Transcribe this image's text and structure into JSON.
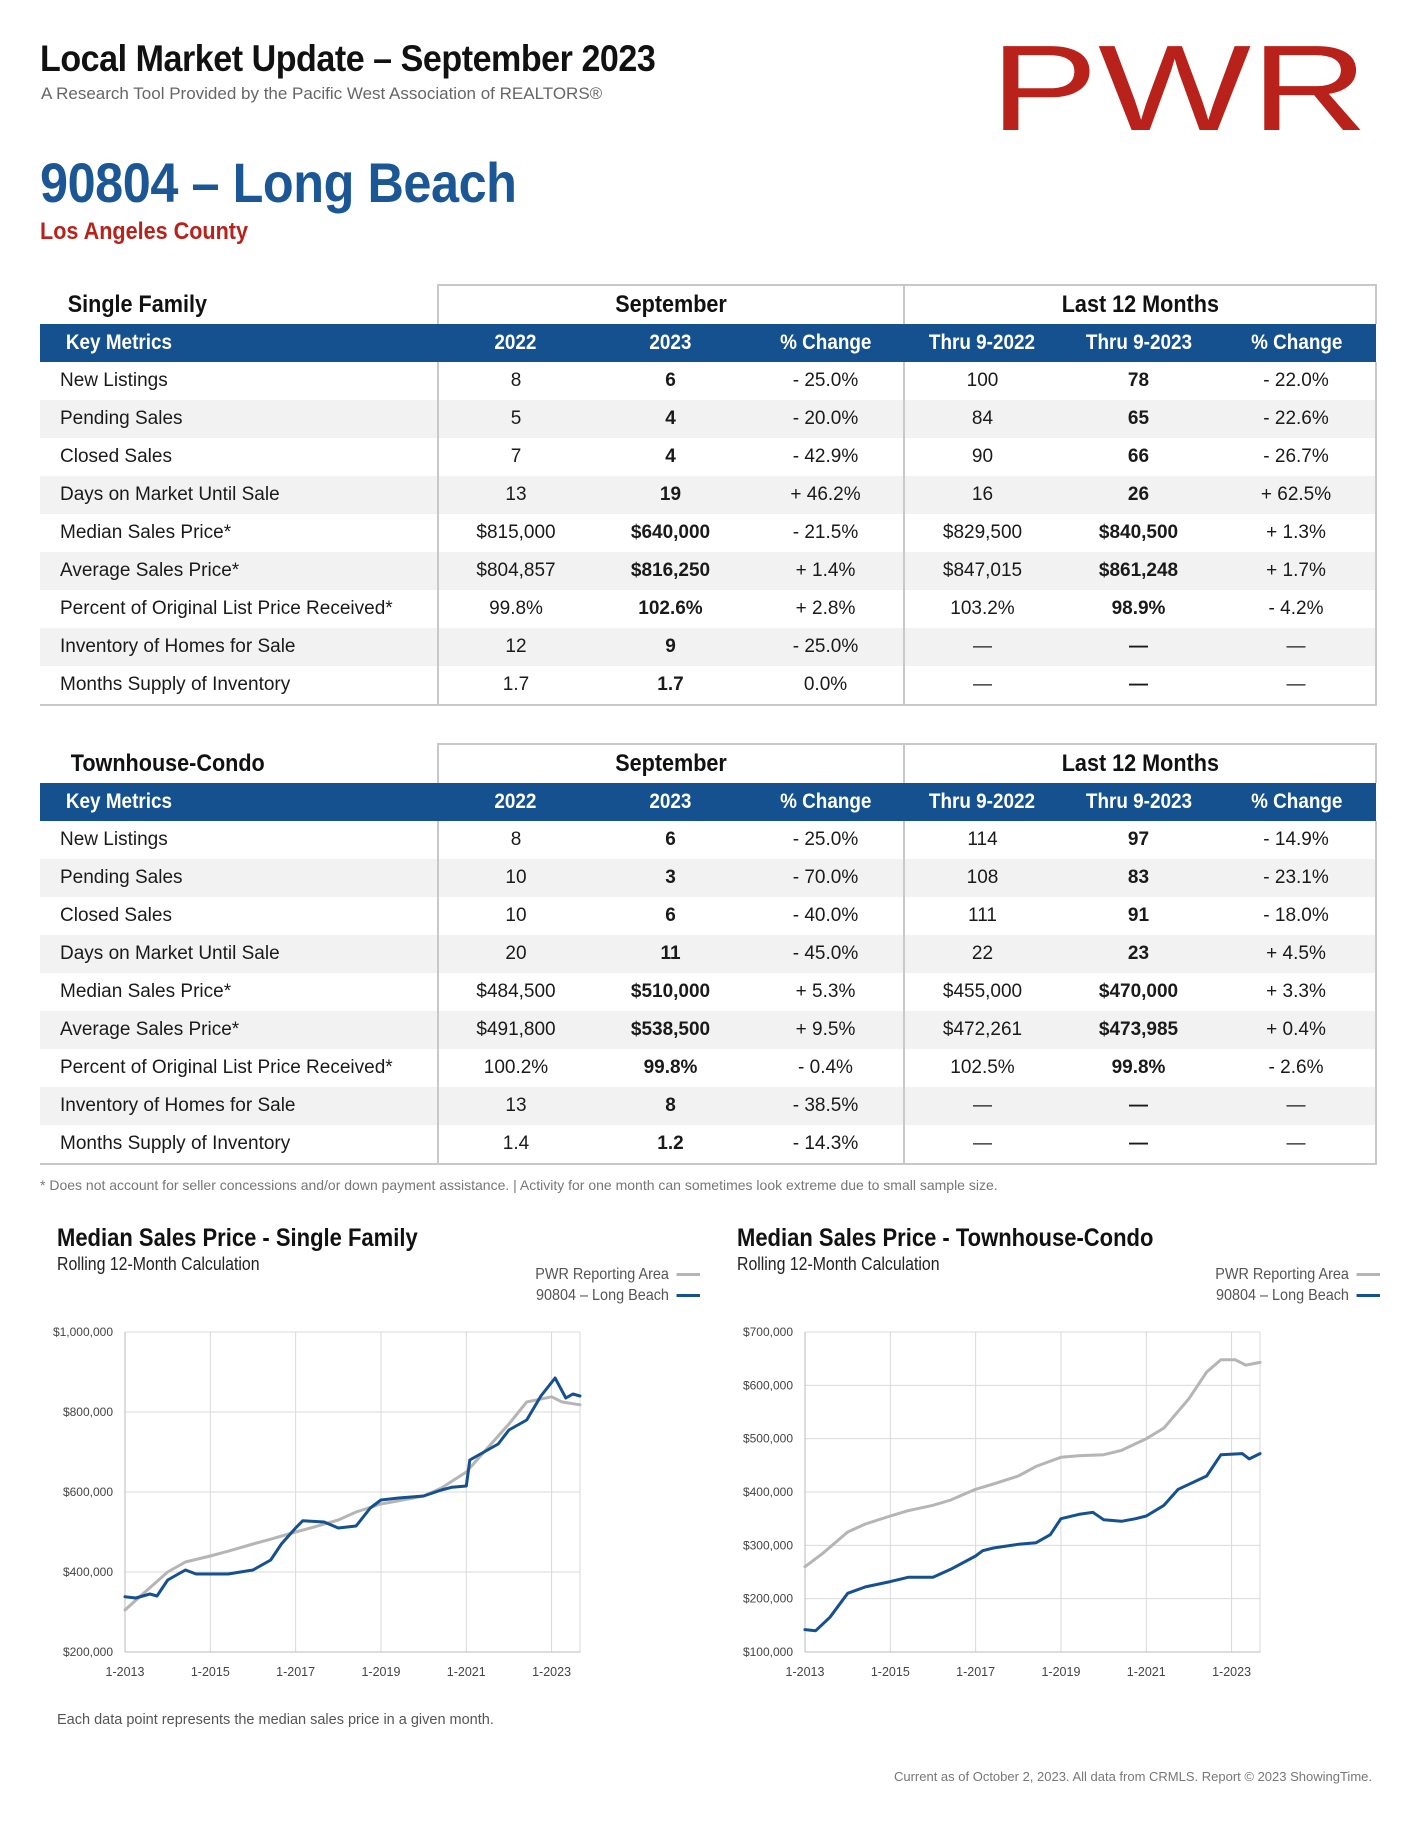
{
  "header": {
    "title": "Local Market Update – September 2023",
    "subtitle": "A Research Tool Provided by the Pacific West Association of REALTORS®",
    "logo_text": "PWR",
    "area": "90804 – Long Beach",
    "county": "Los Angeles County"
  },
  "colors": {
    "brand_blue": "#15508f",
    "title_blue": "#1b5794",
    "brand_red": "#b8221a",
    "region_gray": "#b5b5b5",
    "zip_blue": "#15508f"
  },
  "table_headers": {
    "september": "September",
    "last12": "Last 12 Months",
    "key_metrics": "Key Metrics",
    "y2022": "2022",
    "y2023": "2023",
    "pct_change": "% Change",
    "thru2022": "Thru 9-2022",
    "thru2023": "Thru 9-2023"
  },
  "tables": [
    {
      "name": "Single Family",
      "rows": [
        {
          "metric": "New Listings",
          "m2022": "8",
          "m2023": "6",
          "mchg": "- 25.0%",
          "t2022": "100",
          "t2023": "78",
          "tchg": "- 22.0%"
        },
        {
          "metric": "Pending Sales",
          "m2022": "5",
          "m2023": "4",
          "mchg": "- 20.0%",
          "t2022": "84",
          "t2023": "65",
          "tchg": "- 22.6%"
        },
        {
          "metric": "Closed Sales",
          "m2022": "7",
          "m2023": "4",
          "mchg": "- 42.9%",
          "t2022": "90",
          "t2023": "66",
          "tchg": "- 26.7%"
        },
        {
          "metric": "Days on Market Until Sale",
          "m2022": "13",
          "m2023": "19",
          "mchg": "+ 46.2%",
          "t2022": "16",
          "t2023": "26",
          "tchg": "+ 62.5%"
        },
        {
          "metric": "Median Sales Price*",
          "m2022": "$815,000",
          "m2023": "$640,000",
          "mchg": "- 21.5%",
          "t2022": "$829,500",
          "t2023": "$840,500",
          "tchg": "+ 1.3%"
        },
        {
          "metric": "Average Sales Price*",
          "m2022": "$804,857",
          "m2023": "$816,250",
          "mchg": "+ 1.4%",
          "t2022": "$847,015",
          "t2023": "$861,248",
          "tchg": "+ 1.7%"
        },
        {
          "metric": "Percent of Original List Price Received*",
          "m2022": "99.8%",
          "m2023": "102.6%",
          "mchg": "+ 2.8%",
          "t2022": "103.2%",
          "t2023": "98.9%",
          "tchg": "- 4.2%"
        },
        {
          "metric": "Inventory of Homes for Sale",
          "m2022": "12",
          "m2023": "9",
          "mchg": "- 25.0%",
          "t2022": "—",
          "t2023": "—",
          "tchg": "—"
        },
        {
          "metric": "Months Supply of Inventory",
          "m2022": "1.7",
          "m2023": "1.7",
          "mchg": "0.0%",
          "t2022": "—",
          "t2023": "—",
          "tchg": "—"
        }
      ]
    },
    {
      "name": "Townhouse-Condo",
      "rows": [
        {
          "metric": "New Listings",
          "m2022": "8",
          "m2023": "6",
          "mchg": "- 25.0%",
          "t2022": "114",
          "t2023": "97",
          "tchg": "- 14.9%"
        },
        {
          "metric": "Pending Sales",
          "m2022": "10",
          "m2023": "3",
          "mchg": "- 70.0%",
          "t2022": "108",
          "t2023": "83",
          "tchg": "- 23.1%"
        },
        {
          "metric": "Closed Sales",
          "m2022": "10",
          "m2023": "6",
          "mchg": "- 40.0%",
          "t2022": "111",
          "t2023": "91",
          "tchg": "- 18.0%"
        },
        {
          "metric": "Days on Market Until Sale",
          "m2022": "20",
          "m2023": "11",
          "mchg": "- 45.0%",
          "t2022": "22",
          "t2023": "23",
          "tchg": "+ 4.5%"
        },
        {
          "metric": "Median Sales Price*",
          "m2022": "$484,500",
          "m2023": "$510,000",
          "mchg": "+ 5.3%",
          "t2022": "$455,000",
          "t2023": "$470,000",
          "tchg": "+ 3.3%"
        },
        {
          "metric": "Average Sales Price*",
          "m2022": "$491,800",
          "m2023": "$538,500",
          "mchg": "+ 9.5%",
          "t2022": "$472,261",
          "t2023": "$473,985",
          "tchg": "+ 0.4%"
        },
        {
          "metric": "Percent of Original List Price Received*",
          "m2022": "100.2%",
          "m2023": "99.8%",
          "mchg": "- 0.4%",
          "t2022": "102.5%",
          "t2023": "99.8%",
          "tchg": "- 2.6%"
        },
        {
          "metric": "Inventory of Homes for Sale",
          "m2022": "13",
          "m2023": "8",
          "mchg": "- 38.5%",
          "t2022": "—",
          "t2023": "—",
          "tchg": "—"
        },
        {
          "metric": "Months Supply of Inventory",
          "m2022": "1.4",
          "m2023": "1.2",
          "mchg": "- 14.3%",
          "t2022": "—",
          "t2023": "—",
          "tchg": "—"
        }
      ]
    }
  ],
  "footnote": "* Does not account for seller concessions and/or down payment assistance. | Activity for one month can sometimes look extreme due to small sample size.",
  "chart_data": [
    {
      "type": "line",
      "title": "Median Sales Price - Single Family",
      "subtitle": "Rolling 12-Month Calculation",
      "xticks": [
        "1-2013",
        "1-2015",
        "1-2017",
        "1-2019",
        "1-2021",
        "1-2023"
      ],
      "xlim": [
        "2013-01",
        "2023-09"
      ],
      "yticks": [
        "$200,000",
        "$400,000",
        "$600,000",
        "$800,000",
        "$1,000,000"
      ],
      "ylim": [
        200000,
        1000000
      ],
      "grid": true,
      "legend_position": "top-right",
      "series": [
        {
          "name": "PWR Reporting Area",
          "color": "#b5b5b5",
          "points": [
            [
              "2013-01",
              305000
            ],
            [
              "2013-06",
              345000
            ],
            [
              "2014-01",
              400000
            ],
            [
              "2014-06",
              425000
            ],
            [
              "2015-01",
              440000
            ],
            [
              "2015-06",
              452000
            ],
            [
              "2016-01",
              470000
            ],
            [
              "2016-06",
              482000
            ],
            [
              "2017-01",
              500000
            ],
            [
              "2017-06",
              512000
            ],
            [
              "2018-01",
              530000
            ],
            [
              "2018-06",
              550000
            ],
            [
              "2019-01",
              570000
            ],
            [
              "2019-06",
              578000
            ],
            [
              "2020-01",
              590000
            ],
            [
              "2020-06",
              610000
            ],
            [
              "2021-01",
              650000
            ],
            [
              "2021-06",
              700000
            ],
            [
              "2022-01",
              770000
            ],
            [
              "2022-06",
              825000
            ],
            [
              "2023-01",
              838000
            ],
            [
              "2023-04",
              825000
            ],
            [
              "2023-09",
              818000
            ]
          ]
        },
        {
          "name": "90804 – Long Beach",
          "color": "#15508f",
          "points": [
            [
              "2013-01",
              338000
            ],
            [
              "2013-04",
              335000
            ],
            [
              "2013-08",
              345000
            ],
            [
              "2013-10",
              340000
            ],
            [
              "2014-01",
              380000
            ],
            [
              "2014-06",
              405000
            ],
            [
              "2014-09",
              395000
            ],
            [
              "2015-06",
              395000
            ],
            [
              "2016-01",
              405000
            ],
            [
              "2016-06",
              430000
            ],
            [
              "2016-09",
              470000
            ],
            [
              "2017-01",
              510000
            ],
            [
              "2017-03",
              528000
            ],
            [
              "2017-09",
              525000
            ],
            [
              "2018-01",
              510000
            ],
            [
              "2018-06",
              515000
            ],
            [
              "2018-10",
              560000
            ],
            [
              "2019-01",
              580000
            ],
            [
              "2019-06",
              585000
            ],
            [
              "2020-01",
              590000
            ],
            [
              "2020-06",
              605000
            ],
            [
              "2020-09",
              612000
            ],
            [
              "2021-01",
              615000
            ],
            [
              "2021-02",
              680000
            ],
            [
              "2021-06",
              700000
            ],
            [
              "2021-10",
              720000
            ],
            [
              "2022-01",
              755000
            ],
            [
              "2022-06",
              780000
            ],
            [
              "2022-10",
              840000
            ],
            [
              "2023-02",
              885000
            ],
            [
              "2023-05",
              835000
            ],
            [
              "2023-07",
              845000
            ],
            [
              "2023-09",
              840000
            ]
          ]
        }
      ]
    },
    {
      "type": "line",
      "title": "Median Sales Price - Townhouse-Condo",
      "subtitle": "Rolling 12-Month Calculation",
      "xticks": [
        "1-2013",
        "1-2015",
        "1-2017",
        "1-2019",
        "1-2021",
        "1-2023"
      ],
      "xlim": [
        "2013-01",
        "2023-09"
      ],
      "yticks": [
        "$100,000",
        "$200,000",
        "$300,000",
        "$400,000",
        "$500,000",
        "$600,000",
        "$700,000"
      ],
      "ylim": [
        100000,
        700000
      ],
      "grid": true,
      "legend_position": "top-right",
      "series": [
        {
          "name": "PWR Reporting Area",
          "color": "#b5b5b5",
          "points": [
            [
              "2013-01",
              260000
            ],
            [
              "2013-06",
              285000
            ],
            [
              "2014-01",
              325000
            ],
            [
              "2014-06",
              340000
            ],
            [
              "2015-01",
              355000
            ],
            [
              "2015-06",
              365000
            ],
            [
              "2016-01",
              375000
            ],
            [
              "2016-06",
              385000
            ],
            [
              "2017-01",
              405000
            ],
            [
              "2017-06",
              415000
            ],
            [
              "2018-01",
              430000
            ],
            [
              "2018-06",
              448000
            ],
            [
              "2019-01",
              465000
            ],
            [
              "2019-06",
              468000
            ],
            [
              "2020-01",
              470000
            ],
            [
              "2020-06",
              478000
            ],
            [
              "2021-01",
              500000
            ],
            [
              "2021-06",
              520000
            ],
            [
              "2022-01",
              575000
            ],
            [
              "2022-06",
              625000
            ],
            [
              "2022-10",
              648000
            ],
            [
              "2023-02",
              648000
            ],
            [
              "2023-05",
              638000
            ],
            [
              "2023-09",
              643000
            ]
          ]
        },
        {
          "name": "90804 – Long Beach",
          "color": "#15508f",
          "points": [
            [
              "2013-01",
              142000
            ],
            [
              "2013-04",
              140000
            ],
            [
              "2013-08",
              165000
            ],
            [
              "2014-01",
              210000
            ],
            [
              "2014-06",
              222000
            ],
            [
              "2015-01",
              232000
            ],
            [
              "2015-06",
              240000
            ],
            [
              "2016-01",
              240000
            ],
            [
              "2016-06",
              255000
            ],
            [
              "2017-01",
              280000
            ],
            [
              "2017-03",
              290000
            ],
            [
              "2017-06",
              295000
            ],
            [
              "2018-01",
              302000
            ],
            [
              "2018-06",
              305000
            ],
            [
              "2018-10",
              320000
            ],
            [
              "2019-01",
              350000
            ],
            [
              "2019-06",
              358000
            ],
            [
              "2019-10",
              362000
            ],
            [
              "2020-01",
              348000
            ],
            [
              "2020-06",
              345000
            ],
            [
              "2020-10",
              350000
            ],
            [
              "2021-01",
              355000
            ],
            [
              "2021-06",
              375000
            ],
            [
              "2021-10",
              405000
            ],
            [
              "2022-06",
              430000
            ],
            [
              "2022-10",
              470000
            ],
            [
              "2023-04",
              472000
            ],
            [
              "2023-06",
              462000
            ],
            [
              "2023-09",
              472000
            ]
          ]
        }
      ]
    }
  ],
  "chart_note": "Each data point represents the median sales price in a given month.",
  "credits": "Current as of October 2, 2023. All data from CRMLS. Report © 2023 ShowingTime."
}
